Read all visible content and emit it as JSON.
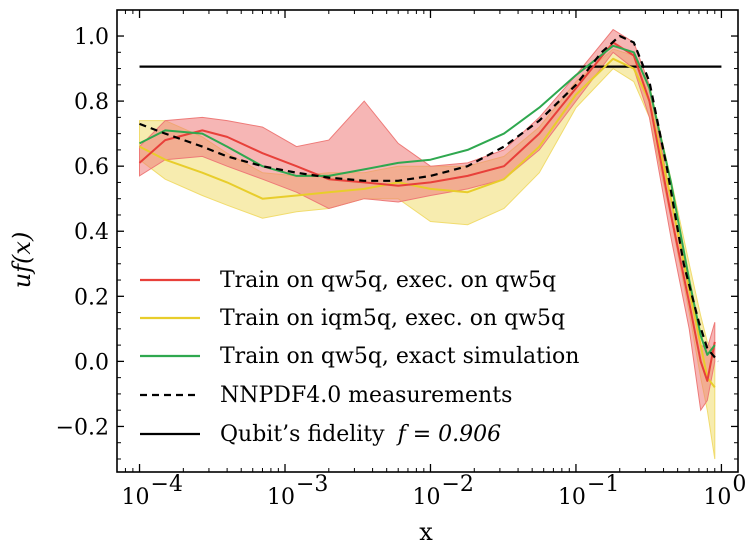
{
  "chart_data": {
    "type": "line",
    "xscale": "log",
    "xlim": [
      7e-05,
      1.3
    ],
    "ylim": [
      -0.34,
      1.08
    ],
    "xlabel": "x",
    "ylabel": "uf(x)",
    "legend_position": "lower-left",
    "xticks": [
      {
        "value": 0.0001,
        "base": "10",
        "exp": "−4"
      },
      {
        "value": 0.001,
        "base": "10",
        "exp": "−3"
      },
      {
        "value": 0.01,
        "base": "10",
        "exp": "−2"
      },
      {
        "value": 0.1,
        "base": "10",
        "exp": "−1"
      },
      {
        "value": 1,
        "base": "10",
        "exp": "0"
      }
    ],
    "yticks": [
      {
        "value": -0.2,
        "label": "−0.2"
      },
      {
        "value": 0.0,
        "label": "0.0"
      },
      {
        "value": 0.2,
        "label": "0.2"
      },
      {
        "value": 0.4,
        "label": "0.4"
      },
      {
        "value": 0.6,
        "label": "0.6"
      },
      {
        "value": 0.8,
        "label": "0.8"
      },
      {
        "value": 1.0,
        "label": "1.0"
      }
    ],
    "series": [
      {
        "name": "Train on qw5q, exec. on qw5q",
        "color": "#e8403a",
        "band_color": "#ee7a78",
        "x": [
          0.0001,
          0.00015,
          0.00027,
          0.0004,
          0.0007,
          0.0012,
          0.002,
          0.0035,
          0.006,
          0.01,
          0.018,
          0.032,
          0.056,
          0.1,
          0.18,
          0.25,
          0.32,
          0.45,
          0.6,
          0.72,
          0.8,
          0.9
        ],
        "y": [
          0.61,
          0.68,
          0.71,
          0.69,
          0.64,
          0.6,
          0.56,
          0.55,
          0.54,
          0.55,
          0.57,
          0.6,
          0.7,
          0.84,
          0.98,
          0.94,
          0.8,
          0.45,
          0.18,
          0.0,
          -0.06,
          0.06
        ],
        "lower": [
          0.57,
          0.62,
          0.63,
          0.6,
          0.56,
          0.52,
          0.47,
          0.5,
          0.49,
          0.51,
          0.53,
          0.56,
          0.65,
          0.8,
          0.95,
          0.9,
          0.75,
          0.38,
          0.1,
          -0.15,
          -0.12,
          0.0
        ],
        "upper": [
          0.66,
          0.74,
          0.75,
          0.74,
          0.72,
          0.66,
          0.68,
          0.8,
          0.67,
          0.6,
          0.61,
          0.65,
          0.75,
          0.88,
          1.02,
          0.98,
          0.85,
          0.5,
          0.24,
          0.05,
          0.04,
          0.12
        ]
      },
      {
        "name": "Train on iqm5q, exec. on qw5q",
        "color": "#e8cd2b",
        "band_color": "#f1dc6e",
        "x": [
          0.0001,
          0.00015,
          0.00027,
          0.0004,
          0.0007,
          0.0012,
          0.002,
          0.0035,
          0.006,
          0.01,
          0.018,
          0.032,
          0.056,
          0.1,
          0.18,
          0.25,
          0.32,
          0.45,
          0.6,
          0.72,
          0.8,
          0.9
        ],
        "y": [
          0.66,
          0.62,
          0.58,
          0.55,
          0.5,
          0.51,
          0.52,
          0.53,
          0.55,
          0.53,
          0.52,
          0.56,
          0.66,
          0.82,
          0.93,
          0.9,
          0.8,
          0.5,
          0.22,
          0.05,
          -0.05,
          -0.08
        ],
        "lower": [
          0.62,
          0.56,
          0.51,
          0.48,
          0.44,
          0.46,
          0.47,
          0.5,
          0.5,
          0.43,
          0.42,
          0.47,
          0.58,
          0.78,
          0.9,
          0.86,
          0.75,
          0.44,
          0.15,
          -0.05,
          -0.15,
          -0.3
        ],
        "upper": [
          0.74,
          0.74,
          0.69,
          0.64,
          0.58,
          0.57,
          0.58,
          0.58,
          0.6,
          0.6,
          0.6,
          0.63,
          0.72,
          0.86,
          0.96,
          0.94,
          0.85,
          0.56,
          0.3,
          0.14,
          0.06,
          0.02
        ]
      },
      {
        "name": "Train on qw5q, exact simulation",
        "color": "#2fa84f",
        "band_color": "#2fa84f",
        "x": [
          0.0001,
          0.00015,
          0.00027,
          0.0004,
          0.0007,
          0.0012,
          0.002,
          0.0035,
          0.006,
          0.01,
          0.018,
          0.032,
          0.056,
          0.1,
          0.18,
          0.25,
          0.32,
          0.45,
          0.6,
          0.72,
          0.8,
          0.9
        ],
        "y": [
          0.67,
          0.71,
          0.7,
          0.66,
          0.6,
          0.57,
          0.57,
          0.59,
          0.61,
          0.62,
          0.65,
          0.7,
          0.78,
          0.88,
          0.97,
          0.95,
          0.84,
          0.55,
          0.25,
          0.08,
          0.02,
          0.05
        ],
        "lower": [
          0.67,
          0.71,
          0.7,
          0.66,
          0.6,
          0.57,
          0.57,
          0.59,
          0.61,
          0.62,
          0.65,
          0.7,
          0.78,
          0.88,
          0.97,
          0.95,
          0.84,
          0.55,
          0.25,
          0.08,
          0.02,
          0.05
        ],
        "upper": [
          0.67,
          0.71,
          0.7,
          0.66,
          0.6,
          0.57,
          0.57,
          0.59,
          0.61,
          0.62,
          0.65,
          0.7,
          0.78,
          0.88,
          0.97,
          0.95,
          0.84,
          0.55,
          0.25,
          0.08,
          0.02,
          0.05
        ]
      },
      {
        "name": "NNPDF4.0 measurements",
        "color": "#000000",
        "dashed": true,
        "x": [
          0.0001,
          0.00015,
          0.00027,
          0.0004,
          0.0007,
          0.0012,
          0.002,
          0.0035,
          0.006,
          0.01,
          0.018,
          0.032,
          0.056,
          0.1,
          0.15,
          0.2,
          0.25,
          0.32,
          0.42,
          0.55,
          0.7,
          0.8,
          0.95
        ],
        "y": [
          0.73,
          0.7,
          0.66,
          0.63,
          0.6,
          0.58,
          0.565,
          0.555,
          0.555,
          0.57,
          0.6,
          0.66,
          0.74,
          0.85,
          0.95,
          1.0,
          0.98,
          0.86,
          0.6,
          0.3,
          0.12,
          0.04,
          0.0
        ]
      },
      {
        "name": "Qubit’s fidelity",
        "name_math": "f = 0.906",
        "color": "#000000",
        "x": [
          0.0001,
          1.0
        ],
        "y": [
          0.906,
          0.906
        ]
      }
    ]
  }
}
